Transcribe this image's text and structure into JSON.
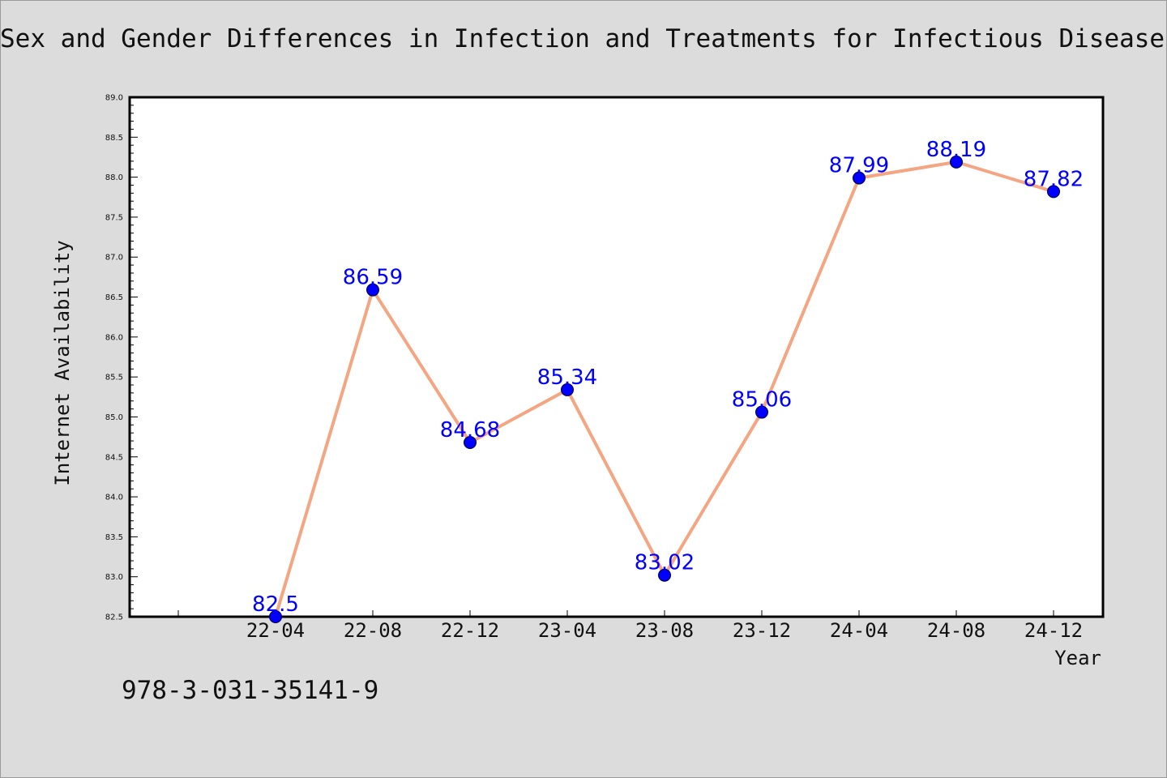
{
  "title": "Sex and Gender Differences in Infection and Treatments for Infectious Diseases",
  "footnote": "978-3-031-35141-9",
  "colors": {
    "background": "#dcdcdc",
    "plot_background": "#ffffff",
    "line": "#f4a582",
    "marker": "#0000ff",
    "data_label": "#0000ff"
  },
  "chart_data": {
    "type": "line",
    "title": "Sex and Gender Differences in Infection and Treatments for Infectious Diseases",
    "xlabel": "Year",
    "ylabel": "Internet Availability",
    "categories": [
      "22-04",
      "22-08",
      "22-12",
      "23-04",
      "23-08",
      "23-12",
      "24-04",
      "24-08",
      "24-12"
    ],
    "values": [
      82.5,
      86.59,
      84.68,
      85.34,
      83.02,
      85.06,
      87.99,
      88.19,
      87.82
    ],
    "data_labels": [
      "82.5",
      "86.59",
      "84.68",
      "85.34",
      "83.02",
      "85.06",
      "87.99",
      "88.19",
      "87.82"
    ],
    "ylim": [
      82.5,
      89.0
    ],
    "yticks": [
      "82.5",
      "83.0",
      "83.5",
      "84.0",
      "84.5",
      "85.0",
      "85.5",
      "86.0",
      "86.5",
      "87.0",
      "87.5",
      "88.0",
      "88.5",
      "89.0"
    ],
    "grid": false,
    "legend": "none"
  }
}
